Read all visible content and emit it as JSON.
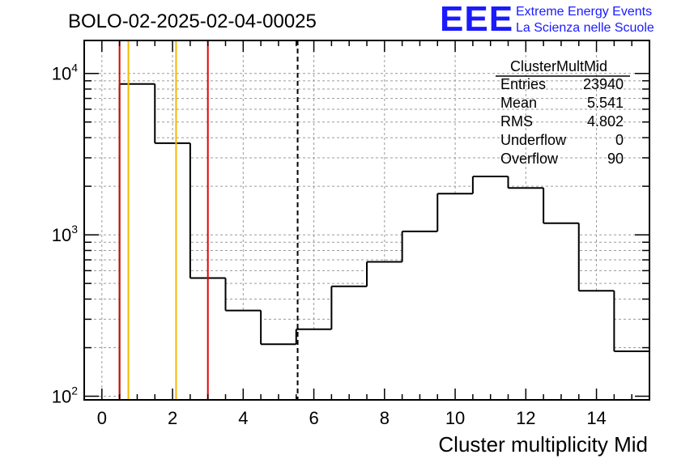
{
  "chart_data": {
    "type": "bar",
    "title": "BOLO-02-2025-02-04-00025",
    "xlabel": "Cluster multiplicity Mid",
    "ylabel": "",
    "xlim": [
      -0.5,
      15.5
    ],
    "ylim": [
      95,
      16000
    ],
    "log_y": true,
    "grid": true,
    "bin_edges": [
      0.5,
      1.5,
      2.5,
      3.5,
      4.5,
      5.5,
      6.5,
      7.5,
      8.5,
      9.5,
      10.5,
      11.5,
      12.5,
      13.5,
      14.5,
      15.5
    ],
    "values": [
      8600,
      3700,
      540,
      340,
      210,
      260,
      480,
      680,
      1050,
      1800,
      2300,
      1950,
      1180,
      450,
      190
    ],
    "x_ticks": [
      "0",
      "2",
      "4",
      "6",
      "8",
      "10",
      "12",
      "14"
    ],
    "y_ticks": [
      {
        "base": "10",
        "exp": "2"
      },
      {
        "base": "10",
        "exp": "3"
      },
      {
        "base": "10",
        "exp": "4"
      }
    ],
    "vertical_lines": [
      {
        "x": 0.5,
        "color": "#e00000",
        "style": "solid"
      },
      {
        "x": 0.75,
        "color": "#f2b800",
        "style": "solid"
      },
      {
        "x": 2.1,
        "color": "#f2b800",
        "style": "solid"
      },
      {
        "x": 3.0,
        "color": "#e00000",
        "style": "solid"
      },
      {
        "x": 5.541,
        "color": "#000000",
        "style": "dashed"
      }
    ],
    "stats": {
      "name": "ClusterMultMid",
      "rows": [
        {
          "key": "Entries",
          "value": "23940"
        },
        {
          "key": "Mean",
          "value": "5.541"
        },
        {
          "key": "RMS",
          "value": "4.802"
        },
        {
          "key": "Underflow",
          "value": "0"
        },
        {
          "key": "Overflow",
          "value": "90"
        }
      ]
    }
  },
  "logo": {
    "text": "EEE",
    "line1": "Extreme Energy Events",
    "line2": "La Scienza nelle Scuole",
    "color": "#1a1aff"
  }
}
